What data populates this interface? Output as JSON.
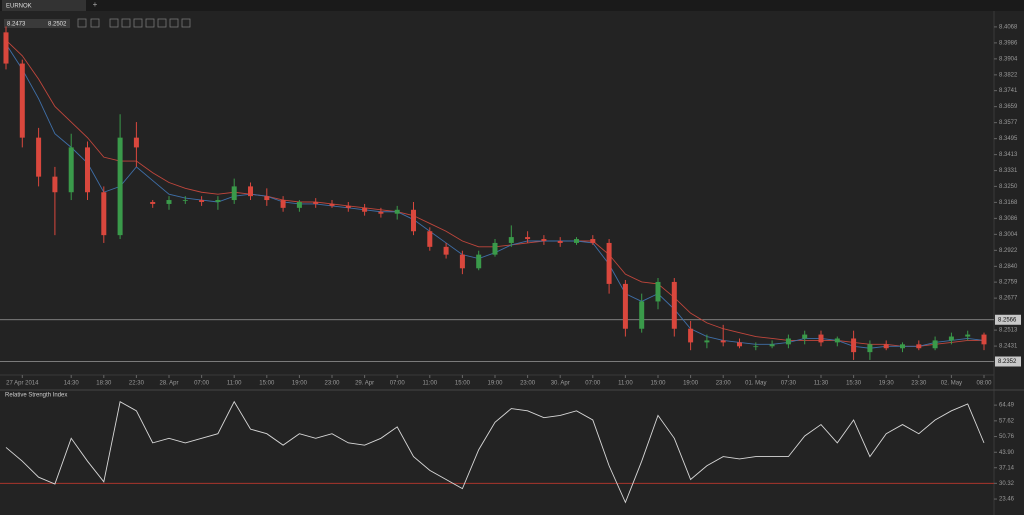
{
  "tab": "EURNOK",
  "tab_add": "+",
  "toolbar": {
    "bid": "8.2473",
    "ask": "8.2502"
  },
  "chart_data": [
    {
      "type": "candlestick",
      "categories": [
        null,
        "27 Apr 2014",
        null,
        null,
        "14:30",
        null,
        "18:30",
        null,
        "22:30",
        null,
        "28. Apr",
        null,
        "07:00",
        null,
        "11:00",
        null,
        "15:00",
        null,
        "19:00",
        null,
        "23:00",
        null,
        "29. Apr",
        null,
        "07:00",
        null,
        "11:00",
        null,
        "15:00",
        null,
        "19:00",
        null,
        "23:00",
        null,
        "30. Apr",
        null,
        "07:00",
        null,
        "11:00",
        null,
        "15:00",
        null,
        "19:00",
        null,
        "23:00",
        null,
        "01. May",
        null,
        "07:30",
        null,
        "11:30",
        null,
        "15:30",
        null,
        "19:30",
        null,
        "23:30",
        null,
        "02. May",
        null,
        "08:00"
      ],
      "open": [
        8.404,
        8.388,
        8.35,
        8.33,
        8.322,
        8.345,
        8.322,
        8.3,
        8.35,
        8.317,
        8.316,
        8.318,
        8.318,
        8.317,
        8.318,
        8.325,
        8.32,
        8.318,
        8.314,
        8.317,
        8.316,
        8.315,
        8.314,
        8.312,
        8.311,
        8.313,
        8.302,
        8.294,
        8.29,
        8.283,
        8.29,
        8.296,
        8.299,
        8.298,
        8.297,
        8.296,
        8.298,
        8.296,
        8.275,
        8.252,
        8.266,
        8.276,
        8.252,
        8.245,
        8.246,
        8.245,
        8.243,
        8.243,
        8.244,
        8.247,
        8.249,
        8.245,
        8.247,
        8.24,
        8.244,
        8.242,
        8.244,
        8.242,
        8.246,
        8.248,
        8.249
      ],
      "high": [
        8.407,
        8.39,
        8.355,
        8.335,
        8.352,
        8.348,
        8.325,
        8.362,
        8.358,
        8.318,
        8.32,
        8.32,
        8.32,
        8.32,
        8.329,
        8.327,
        8.324,
        8.32,
        8.318,
        8.319,
        8.318,
        8.317,
        8.316,
        8.314,
        8.315,
        8.317,
        8.304,
        8.296,
        8.292,
        8.292,
        8.298,
        8.305,
        8.302,
        8.3,
        8.299,
        8.299,
        8.3,
        8.298,
        8.277,
        8.27,
        8.278,
        8.278,
        8.256,
        8.249,
        8.254,
        8.247,
        8.245,
        8.246,
        8.249,
        8.251,
        8.251,
        8.248,
        8.251,
        8.246,
        8.246,
        8.245,
        8.246,
        8.248,
        8.25,
        8.251,
        8.25
      ],
      "low": [
        8.385,
        8.345,
        8.325,
        8.3,
        8.318,
        8.318,
        8.296,
        8.298,
        8.335,
        8.314,
        8.313,
        8.316,
        8.315,
        8.313,
        8.316,
        8.318,
        8.315,
        8.312,
        8.312,
        8.314,
        8.314,
        8.312,
        8.31,
        8.309,
        8.308,
        8.3,
        8.292,
        8.288,
        8.28,
        8.282,
        8.289,
        8.294,
        8.296,
        8.295,
        8.294,
        8.295,
        8.295,
        8.27,
        8.248,
        8.25,
        8.262,
        8.248,
        8.241,
        8.242,
        8.243,
        8.242,
        8.241,
        8.242,
        8.242,
        8.244,
        8.243,
        8.243,
        8.236,
        8.236,
        8.241,
        8.24,
        8.241,
        8.241,
        8.244,
        8.246,
        8.241
      ],
      "close": [
        8.388,
        8.35,
        8.33,
        8.322,
        8.345,
        8.322,
        8.3,
        8.35,
        8.345,
        8.316,
        8.318,
        8.318,
        8.317,
        8.318,
        8.325,
        8.32,
        8.318,
        8.314,
        8.317,
        8.316,
        8.315,
        8.314,
        8.312,
        8.311,
        8.313,
        8.302,
        8.294,
        8.29,
        8.283,
        8.29,
        8.296,
        8.299,
        8.298,
        8.297,
        8.296,
        8.298,
        8.296,
        8.275,
        8.252,
        8.266,
        8.276,
        8.252,
        8.245,
        8.246,
        8.245,
        8.243,
        8.243,
        8.244,
        8.247,
        8.249,
        8.245,
        8.247,
        8.24,
        8.244,
        8.242,
        8.244,
        8.242,
        8.246,
        8.248,
        8.249,
        8.244
      ],
      "up_color": "#3a9a4a",
      "down_color": "#d9473d",
      "lines": [
        {
          "color": "#c0463c",
          "values": [
            8.4,
            8.392,
            8.38,
            8.366,
            8.358,
            8.35,
            8.34,
            8.338,
            8.338,
            8.332,
            8.327,
            8.324,
            8.322,
            8.321,
            8.322,
            8.321,
            8.32,
            8.318,
            8.317,
            8.317,
            8.316,
            8.315,
            8.314,
            8.313,
            8.312,
            8.31,
            8.306,
            8.302,
            8.297,
            8.294,
            8.294,
            8.295,
            8.296,
            8.297,
            8.297,
            8.297,
            8.297,
            8.29,
            8.28,
            8.276,
            8.275,
            8.268,
            8.26,
            8.255,
            8.252,
            8.25,
            8.248,
            8.247,
            8.246,
            8.246,
            8.246,
            8.246,
            8.245,
            8.244,
            8.244,
            8.243,
            8.243,
            8.244,
            8.245,
            8.246,
            8.246
          ]
        },
        {
          "color": "#3f6fa8",
          "values": [
            8.398,
            8.385,
            8.37,
            8.352,
            8.345,
            8.337,
            8.322,
            8.325,
            8.335,
            8.328,
            8.321,
            8.319,
            8.318,
            8.317,
            8.32,
            8.321,
            8.32,
            8.317,
            8.316,
            8.316,
            8.315,
            8.314,
            8.313,
            8.312,
            8.312,
            8.308,
            8.302,
            8.296,
            8.29,
            8.288,
            8.291,
            8.295,
            8.297,
            8.297,
            8.297,
            8.297,
            8.296,
            8.285,
            8.27,
            8.266,
            8.27,
            8.262,
            8.252,
            8.248,
            8.246,
            8.245,
            8.244,
            8.244,
            8.245,
            8.247,
            8.247,
            8.246,
            8.243,
            8.242,
            8.243,
            8.243,
            8.243,
            8.245,
            8.246,
            8.247,
            8.246
          ]
        }
      ],
      "hlines": [
        8.2566,
        8.2352
      ],
      "ylim": [
        8.2293,
        8.4129
      ],
      "yticks": [
        8.4068,
        8.3986,
        8.3904,
        8.3822,
        8.3741,
        8.3659,
        8.3577,
        8.3495,
        8.3413,
        8.3331,
        {
          "value": 8.325,
          "label": "8.3250"
        },
        8.3168,
        8.3086,
        8.3004,
        8.2922,
        {
          "value": 8.284,
          "label": "8.2840"
        },
        8.2759,
        8.2677,
        8.2513,
        8.2431
      ]
    },
    {
      "type": "line",
      "title": "Relative Strength Index",
      "color": "#d8d8d8",
      "level_color": "#a8352c",
      "values": [
        46,
        40,
        33,
        30,
        50,
        40,
        31,
        66,
        62,
        48,
        50,
        48,
        50,
        52,
        66,
        54,
        52,
        47,
        52,
        50,
        52,
        48,
        47,
        50,
        55,
        42,
        36,
        32,
        28,
        45,
        57,
        63,
        62,
        59,
        60,
        62,
        58,
        38,
        22,
        40,
        60,
        50,
        32,
        38,
        42,
        41,
        42,
        42,
        42,
        51,
        56,
        48,
        58,
        42,
        52,
        56,
        52,
        58,
        62,
        65,
        48
      ],
      "ylim": [
        17.8,
        71.1
      ],
      "yticks": [
        64.49,
        57.62,
        50.76,
        {
          "value": 43.9,
          "label": "43.90"
        },
        37.14,
        30.32,
        23.46
      ]
    }
  ]
}
